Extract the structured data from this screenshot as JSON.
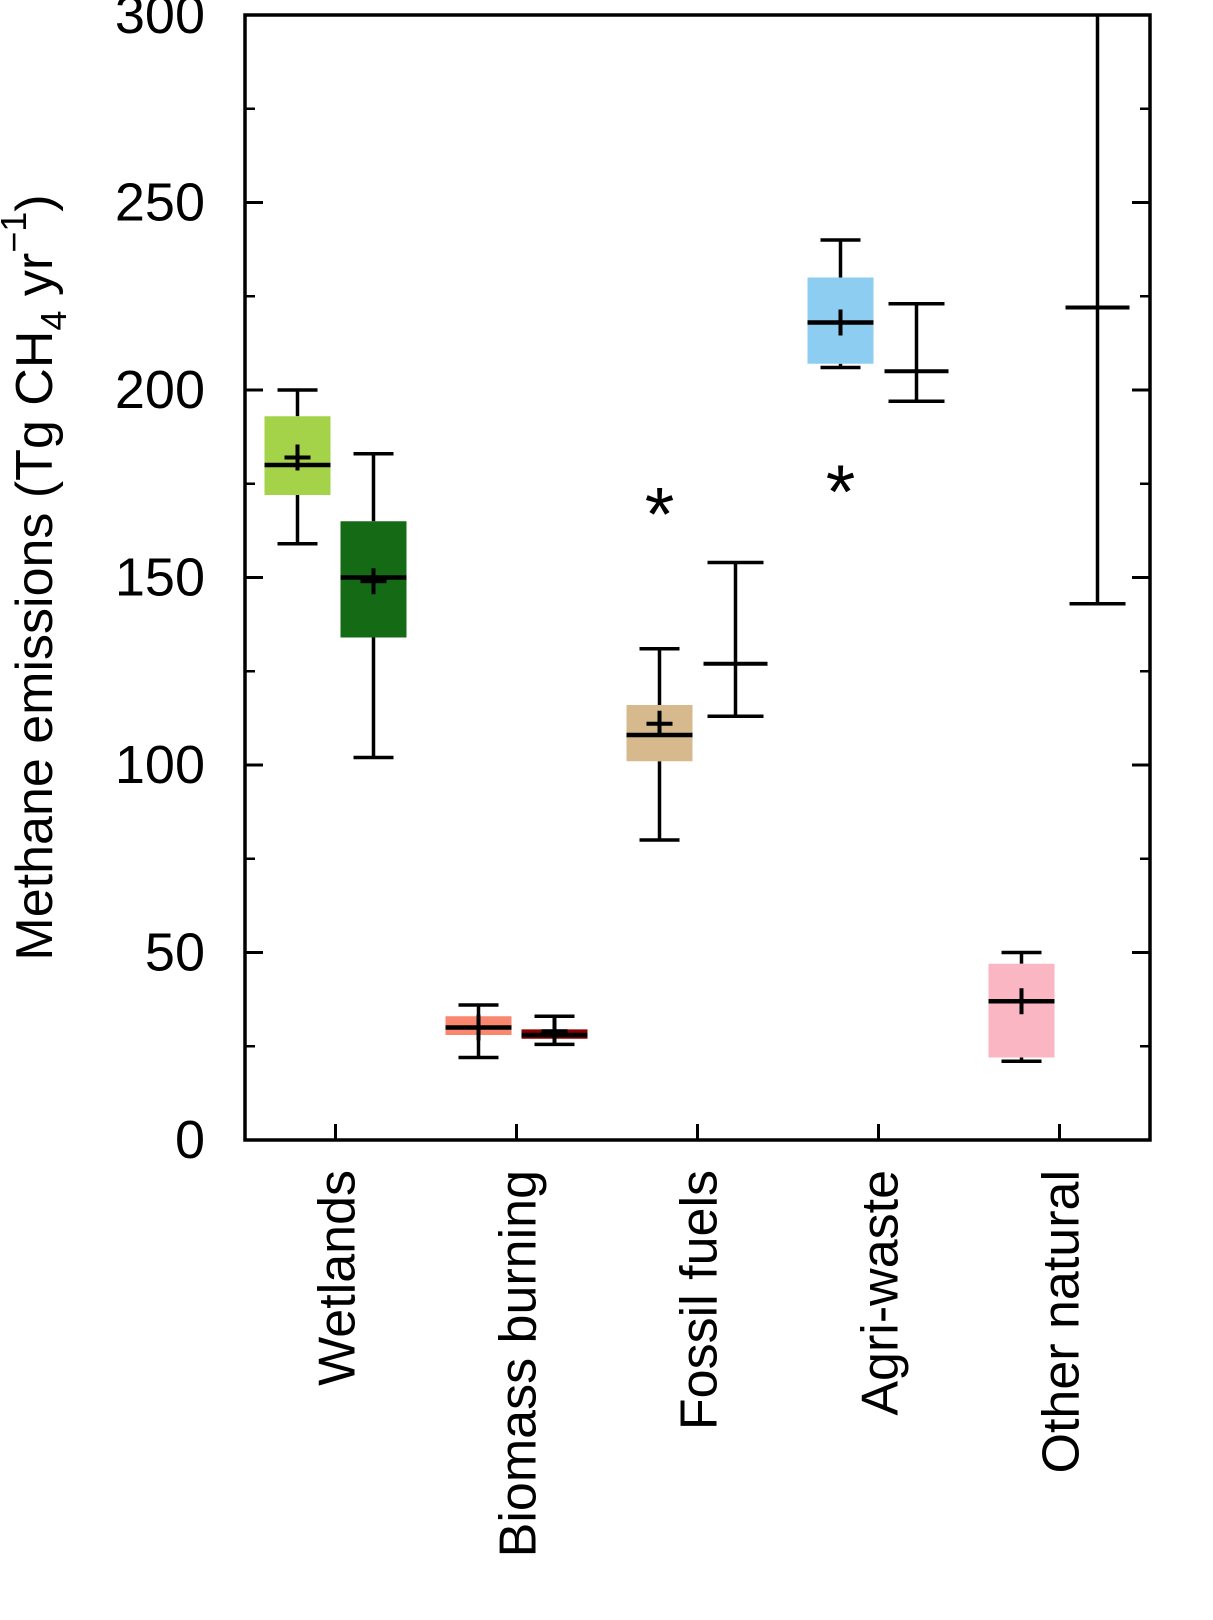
{
  "figure": {
    "description": "Box-and-whisker chart of methane emissions by source category, two estimates per category"
  },
  "chart_data": {
    "type": "boxplot",
    "title": "",
    "xlabel": "",
    "ylabel": "Methane emissions (Tg CH4 yr-1)",
    "ylabel_parts": {
      "main": "Methane emissions (Tg CH",
      "sub": "4",
      "mid": " yr",
      "sup": "−1",
      "end": ")"
    },
    "ylim": [
      0,
      300
    ],
    "yticks": [
      0,
      50,
      100,
      150,
      200,
      250,
      300
    ],
    "minor_tick_step": 25,
    "grid": false,
    "legend": "none",
    "categories": [
      "Wetlands",
      "Biomass burning",
      "Fossil fuels",
      "Agri-waste",
      "Other natural"
    ],
    "groups": [
      {
        "category": "Wetlands",
        "plots": [
          {
            "kind": "box",
            "color": "#a4d34a",
            "q1": 172,
            "q3": 193,
            "median": 180,
            "mean": 182,
            "lo": 159,
            "hi": 200
          },
          {
            "kind": "box",
            "color": "#156b15",
            "q1": 134,
            "q3": 165,
            "median": 150,
            "mean": 149,
            "lo": 102,
            "hi": 183
          }
        ]
      },
      {
        "category": "Biomass burning",
        "plots": [
          {
            "kind": "box",
            "color": "#f9866f",
            "q1": 28,
            "q3": 33,
            "median": 30,
            "mean": 30,
            "lo": 22,
            "hi": 36
          },
          {
            "kind": "box",
            "color": "#8b0000",
            "q1": 27,
            "q3": 29.5,
            "median": 28,
            "mean": 29,
            "lo": 25.5,
            "hi": 33
          }
        ]
      },
      {
        "category": "Fossil fuels",
        "plots": [
          {
            "kind": "box",
            "color": "#d6b98c",
            "q1": 101,
            "q3": 116,
            "median": 108,
            "mean": 111,
            "lo": 80,
            "hi": 131
          },
          {
            "kind": "errorbar",
            "center": 127,
            "lo": 113,
            "hi": 154
          }
        ]
      },
      {
        "category": "Agri-waste",
        "plots": [
          {
            "kind": "box",
            "color": "#8ecdf2",
            "q1": 207,
            "q3": 230,
            "median": 218,
            "mean": 218,
            "lo": 206,
            "hi": 240
          },
          {
            "kind": "errorbar",
            "center": 205,
            "lo": 197,
            "hi": 223
          }
        ]
      },
      {
        "category": "Other natural",
        "plots": [
          {
            "kind": "box",
            "color": "#fbb6c4",
            "q1": 22,
            "q3": 47,
            "median": 37,
            "mean": 37,
            "lo": 21,
            "hi": 50
          },
          {
            "kind": "errorbar",
            "center": 222,
            "lo": 143,
            "hi": 310,
            "clip_hi": true
          }
        ]
      }
    ],
    "annotations": [
      {
        "text": "*",
        "category": "Fossil fuels",
        "plot_index": 0,
        "y": 170
      },
      {
        "text": "*",
        "category": "Agri-waste",
        "plot_index": 0,
        "y": 176
      }
    ]
  }
}
